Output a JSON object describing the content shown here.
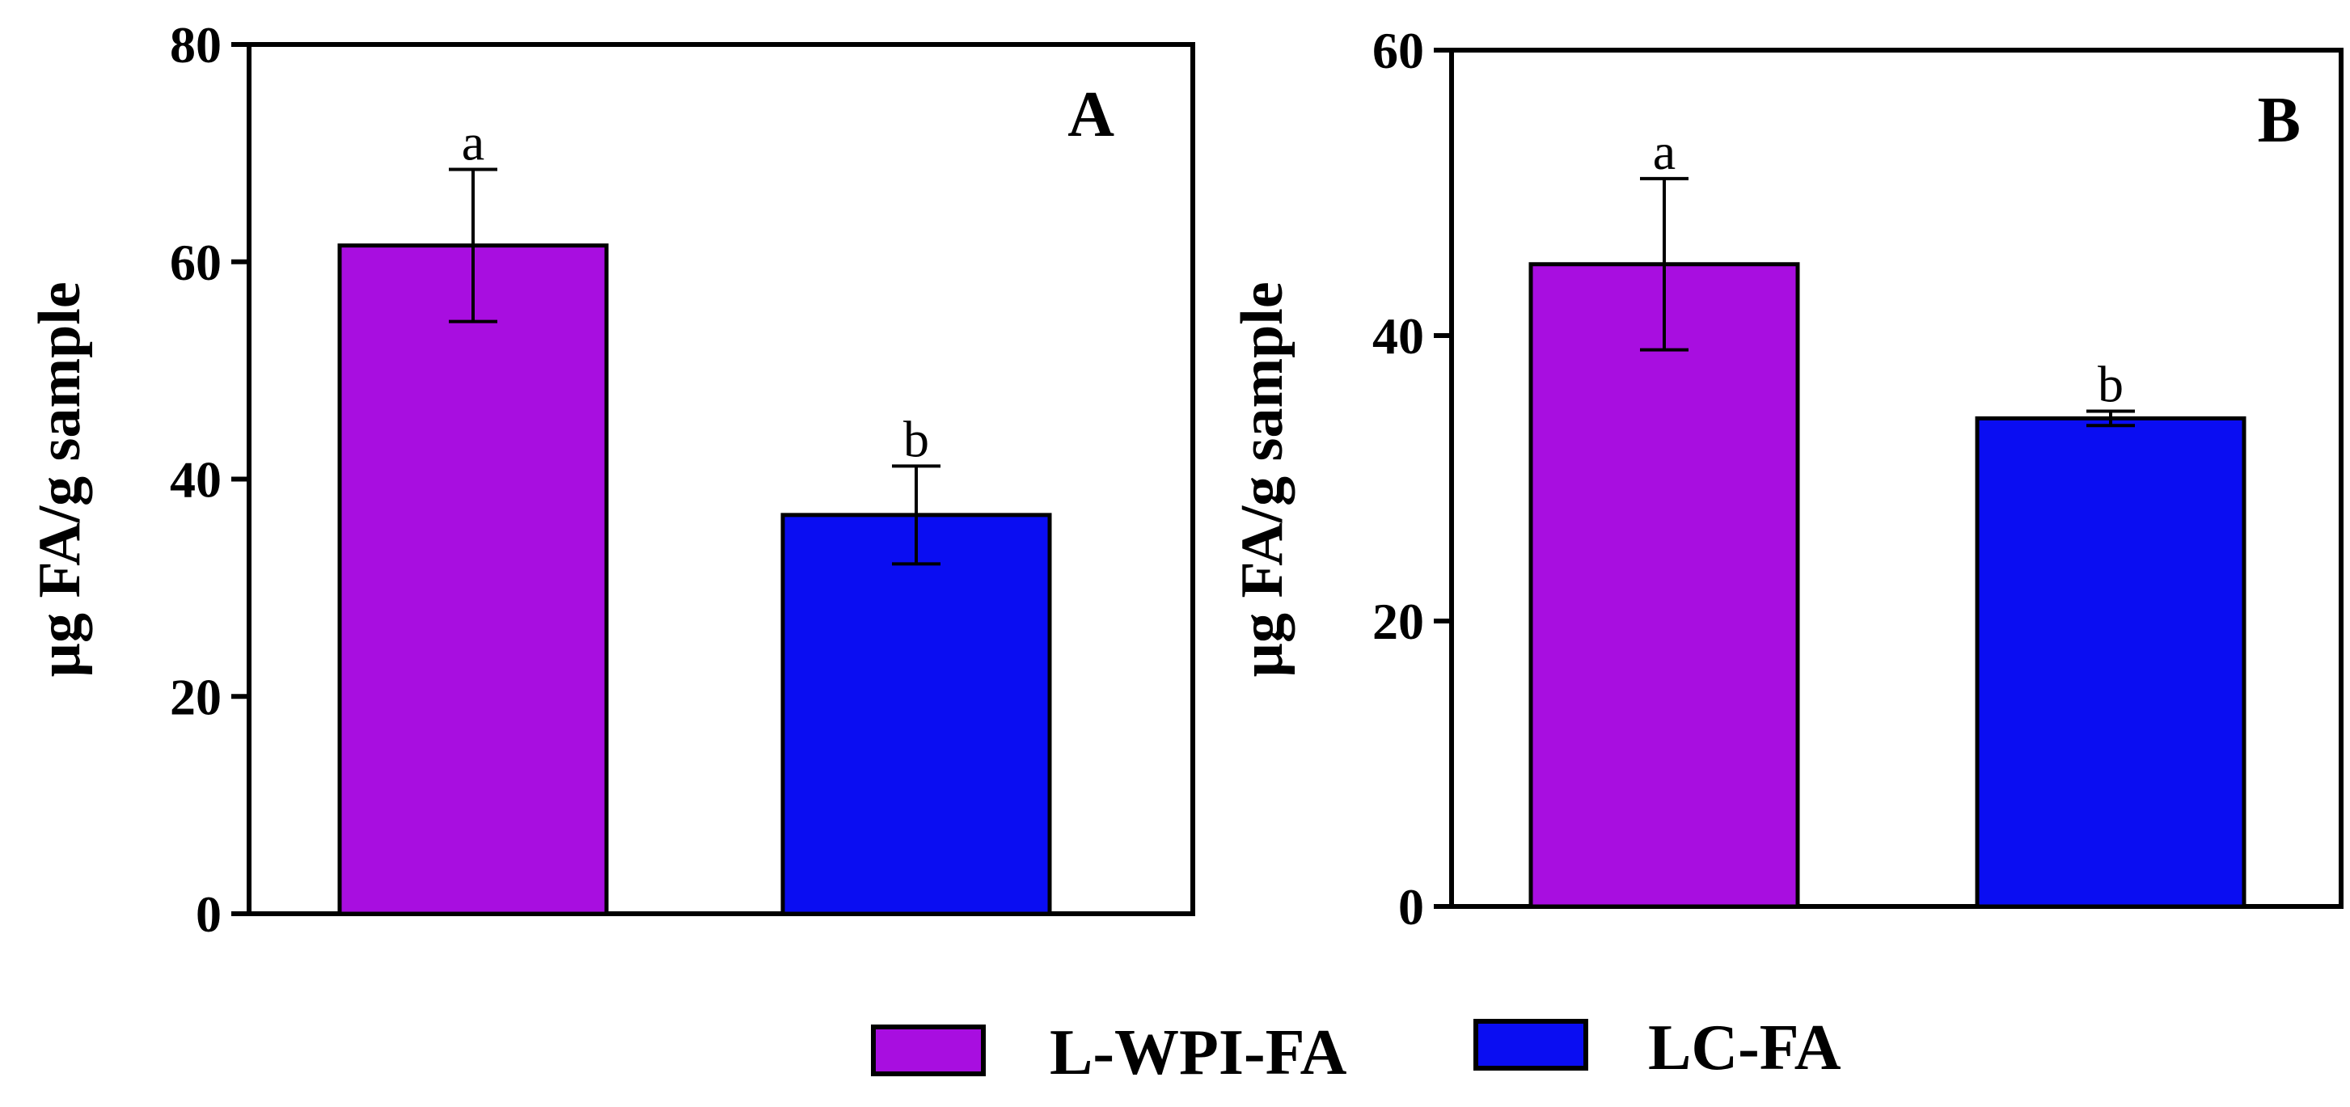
{
  "chart_data": [
    {
      "type": "bar",
      "panel_label": "A",
      "ylabel": "µg FA/g sample",
      "ylim": [
        0,
        80
      ],
      "yticks": [
        0,
        20,
        40,
        60,
        80
      ],
      "categories": [
        "L-WPI-FA",
        "LC-FA"
      ],
      "values": [
        61.5,
        36.7
      ],
      "errors": [
        7.0,
        4.5
      ],
      "letters": [
        "a",
        "b"
      ],
      "colors": [
        "#a80ee0",
        "#0a0df2"
      ]
    },
    {
      "type": "bar",
      "panel_label": "B",
      "ylabel": "µg FA/g sample",
      "ylim": [
        0,
        60
      ],
      "yticks": [
        0,
        20,
        40,
        60
      ],
      "categories": [
        "L-WPI-FA",
        "LC-FA"
      ],
      "values": [
        45.0,
        34.2
      ],
      "errors": [
        6.0,
        0.5
      ],
      "letters": [
        "a",
        "b"
      ],
      "colors": [
        "#a80ee0",
        "#0a0df2"
      ]
    }
  ],
  "legend": [
    {
      "label": "L-WPI-FA",
      "color": "#a80ee0"
    },
    {
      "label": "LC-FA",
      "color": "#0a0df2"
    }
  ]
}
